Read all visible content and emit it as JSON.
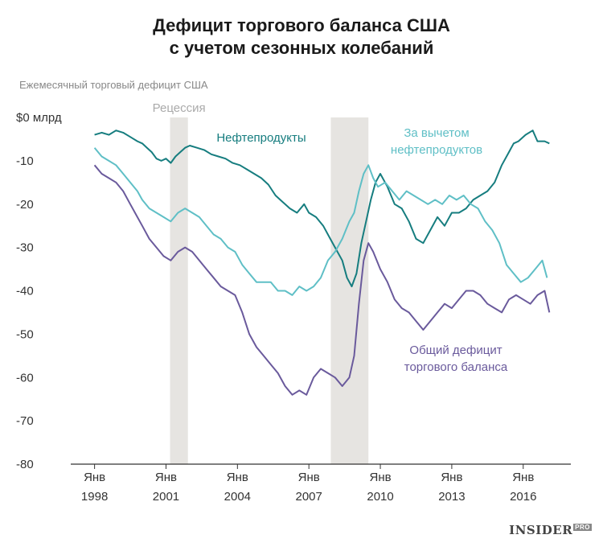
{
  "title_line1": "Дефицит торгового баланса США",
  "title_line2": "с учетом сезонных колебаний",
  "subtitle": "Ежемесячный торговый дефицит США",
  "logo": {
    "text": "INSIDER",
    "sup": "PRO"
  },
  "chart_data": {
    "type": "line",
    "title": "Дефицит торгового баланса США с учетом сезонных колебаний",
    "ylabel": "Ежемесячный торговый дефицит США",
    "x_ticks": [
      {
        "year": 1998,
        "label1": "Янв",
        "label2": "1998"
      },
      {
        "year": 2001,
        "label1": "Янв",
        "label2": "2001"
      },
      {
        "year": 2004,
        "label1": "Янв",
        "label2": "2004"
      },
      {
        "year": 2007,
        "label1": "Янв",
        "label2": "2007"
      },
      {
        "year": 2010,
        "label1": "Янв",
        "label2": "2010"
      },
      {
        "year": 2013,
        "label1": "Янв",
        "label2": "2013"
      },
      {
        "year": 2016,
        "label1": "Янв",
        "label2": "2016"
      }
    ],
    "y_ticks": [
      {
        "v": 0,
        "label": "$0 млрд"
      },
      {
        "v": -10,
        "label": "-10"
      },
      {
        "v": -20,
        "label": "-20"
      },
      {
        "v": -30,
        "label": "-30"
      },
      {
        "v": -40,
        "label": "-40"
      },
      {
        "v": -50,
        "label": "-50"
      },
      {
        "v": -60,
        "label": "-60"
      },
      {
        "v": -70,
        "label": "-70"
      },
      {
        "v": -80,
        "label": "-80"
      }
    ],
    "xlim": [
      1997.0,
      2018.0
    ],
    "ylim": [
      -80,
      0
    ],
    "recessions": [
      {
        "label": "Рецессия",
        "start": 2001.17,
        "end": 2001.92
      },
      {
        "label": "",
        "start": 2007.92,
        "end": 2009.5
      }
    ],
    "series": [
      {
        "name": "Нефтепродукты",
        "color": "#167d7f",
        "points": [
          [
            1998.0,
            -4
          ],
          [
            1998.3,
            -3.5
          ],
          [
            1998.6,
            -4
          ],
          [
            1998.9,
            -3
          ],
          [
            1999.2,
            -3.5
          ],
          [
            1999.5,
            -4.5
          ],
          [
            1999.8,
            -5.5
          ],
          [
            2000.0,
            -6
          ],
          [
            2000.2,
            -7
          ],
          [
            2000.4,
            -8
          ],
          [
            2000.6,
            -9.5
          ],
          [
            2000.8,
            -10
          ],
          [
            2001.0,
            -9.5
          ],
          [
            2001.2,
            -10.5
          ],
          [
            2001.4,
            -9
          ],
          [
            2001.6,
            -8
          ],
          [
            2001.8,
            -7
          ],
          [
            2002.0,
            -6.5
          ],
          [
            2002.3,
            -7
          ],
          [
            2002.6,
            -7.5
          ],
          [
            2002.9,
            -8.5
          ],
          [
            2003.2,
            -9
          ],
          [
            2003.5,
            -9.5
          ],
          [
            2003.8,
            -10.5
          ],
          [
            2004.1,
            -11
          ],
          [
            2004.4,
            -12
          ],
          [
            2004.7,
            -13
          ],
          [
            2005.0,
            -14
          ],
          [
            2005.3,
            -15.5
          ],
          [
            2005.6,
            -18
          ],
          [
            2005.9,
            -19.5
          ],
          [
            2006.2,
            -21
          ],
          [
            2006.5,
            -22
          ],
          [
            2006.8,
            -20
          ],
          [
            2007.0,
            -22
          ],
          [
            2007.3,
            -23
          ],
          [
            2007.6,
            -25
          ],
          [
            2007.9,
            -28
          ],
          [
            2008.2,
            -31
          ],
          [
            2008.4,
            -33
          ],
          [
            2008.6,
            -37
          ],
          [
            2008.8,
            -39
          ],
          [
            2009.0,
            -36
          ],
          [
            2009.2,
            -29
          ],
          [
            2009.4,
            -24
          ],
          [
            2009.6,
            -19
          ],
          [
            2009.8,
            -15
          ],
          [
            2010.0,
            -13
          ],
          [
            2010.3,
            -16
          ],
          [
            2010.6,
            -20
          ],
          [
            2010.9,
            -21
          ],
          [
            2011.2,
            -24
          ],
          [
            2011.5,
            -28
          ],
          [
            2011.8,
            -29
          ],
          [
            2012.1,
            -26
          ],
          [
            2012.4,
            -23
          ],
          [
            2012.7,
            -25
          ],
          [
            2013.0,
            -22
          ],
          [
            2013.3,
            -22
          ],
          [
            2013.6,
            -21
          ],
          [
            2013.9,
            -19
          ],
          [
            2014.2,
            -18
          ],
          [
            2014.5,
            -17
          ],
          [
            2014.8,
            -15
          ],
          [
            2015.1,
            -11
          ],
          [
            2015.4,
            -8
          ],
          [
            2015.6,
            -6
          ],
          [
            2015.8,
            -5.5
          ],
          [
            2016.1,
            -4
          ],
          [
            2016.4,
            -3
          ],
          [
            2016.6,
            -5.5
          ],
          [
            2016.9,
            -5.5
          ],
          [
            2017.1,
            -6
          ]
        ]
      },
      {
        "name": "За вычетом нефтепродуктов",
        "color": "#5fbfc6",
        "points": [
          [
            1998.0,
            -7
          ],
          [
            1998.3,
            -9
          ],
          [
            1998.6,
            -10
          ],
          [
            1998.9,
            -11
          ],
          [
            1999.2,
            -13
          ],
          [
            1999.5,
            -15
          ],
          [
            1999.8,
            -17
          ],
          [
            2000.0,
            -19
          ],
          [
            2000.3,
            -21
          ],
          [
            2000.6,
            -22
          ],
          [
            2000.9,
            -23
          ],
          [
            2001.2,
            -24
          ],
          [
            2001.5,
            -22
          ],
          [
            2001.8,
            -21
          ],
          [
            2002.1,
            -22
          ],
          [
            2002.4,
            -23
          ],
          [
            2002.7,
            -25
          ],
          [
            2003.0,
            -27
          ],
          [
            2003.3,
            -28
          ],
          [
            2003.6,
            -30
          ],
          [
            2003.9,
            -31
          ],
          [
            2004.2,
            -34
          ],
          [
            2004.5,
            -36
          ],
          [
            2004.8,
            -38
          ],
          [
            2005.1,
            -38
          ],
          [
            2005.4,
            -38
          ],
          [
            2005.7,
            -40
          ],
          [
            2006.0,
            -40
          ],
          [
            2006.3,
            -41
          ],
          [
            2006.6,
            -39
          ],
          [
            2006.9,
            -40
          ],
          [
            2007.2,
            -39
          ],
          [
            2007.5,
            -37
          ],
          [
            2007.8,
            -33
          ],
          [
            2008.1,
            -31
          ],
          [
            2008.4,
            -28
          ],
          [
            2008.7,
            -24
          ],
          [
            2008.9,
            -22
          ],
          [
            2009.1,
            -17
          ],
          [
            2009.3,
            -13
          ],
          [
            2009.5,
            -11
          ],
          [
            2009.7,
            -14
          ],
          [
            2009.9,
            -16
          ],
          [
            2010.2,
            -15
          ],
          [
            2010.5,
            -17
          ],
          [
            2010.8,
            -19
          ],
          [
            2011.1,
            -17
          ],
          [
            2011.4,
            -18
          ],
          [
            2011.7,
            -19
          ],
          [
            2012.0,
            -20
          ],
          [
            2012.3,
            -19
          ],
          [
            2012.6,
            -20
          ],
          [
            2012.9,
            -18
          ],
          [
            2013.2,
            -19
          ],
          [
            2013.5,
            -18
          ],
          [
            2013.8,
            -20
          ],
          [
            2014.1,
            -21
          ],
          [
            2014.4,
            -24
          ],
          [
            2014.7,
            -26
          ],
          [
            2015.0,
            -29
          ],
          [
            2015.3,
            -34
          ],
          [
            2015.6,
            -36
          ],
          [
            2015.9,
            -38
          ],
          [
            2016.2,
            -37
          ],
          [
            2016.5,
            -35
          ],
          [
            2016.8,
            -33
          ],
          [
            2017.0,
            -37
          ]
        ]
      },
      {
        "name": "Общий дефицит торгового баланса",
        "color": "#6a5a9c",
        "points": [
          [
            1998.0,
            -11
          ],
          [
            1998.3,
            -13
          ],
          [
            1998.6,
            -14
          ],
          [
            1998.9,
            -15
          ],
          [
            1999.2,
            -17
          ],
          [
            1999.5,
            -20
          ],
          [
            1999.8,
            -23
          ],
          [
            2000.0,
            -25
          ],
          [
            2000.3,
            -28
          ],
          [
            2000.6,
            -30
          ],
          [
            2000.9,
            -32
          ],
          [
            2001.2,
            -33
          ],
          [
            2001.5,
            -31
          ],
          [
            2001.8,
            -30
          ],
          [
            2002.1,
            -31
          ],
          [
            2002.4,
            -33
          ],
          [
            2002.7,
            -35
          ],
          [
            2003.0,
            -37
          ],
          [
            2003.3,
            -39
          ],
          [
            2003.6,
            -40
          ],
          [
            2003.9,
            -41
          ],
          [
            2004.2,
            -45
          ],
          [
            2004.5,
            -50
          ],
          [
            2004.8,
            -53
          ],
          [
            2005.1,
            -55
          ],
          [
            2005.4,
            -57
          ],
          [
            2005.7,
            -59
          ],
          [
            2006.0,
            -62
          ],
          [
            2006.3,
            -64
          ],
          [
            2006.6,
            -63
          ],
          [
            2006.9,
            -64
          ],
          [
            2007.2,
            -60
          ],
          [
            2007.5,
            -58
          ],
          [
            2007.8,
            -59
          ],
          [
            2008.1,
            -60
          ],
          [
            2008.4,
            -62
          ],
          [
            2008.7,
            -60
          ],
          [
            2008.9,
            -55
          ],
          [
            2009.1,
            -43
          ],
          [
            2009.3,
            -33
          ],
          [
            2009.5,
            -29
          ],
          [
            2009.7,
            -31
          ],
          [
            2010.0,
            -35
          ],
          [
            2010.3,
            -38
          ],
          [
            2010.6,
            -42
          ],
          [
            2010.9,
            -44
          ],
          [
            2011.2,
            -45
          ],
          [
            2011.5,
            -47
          ],
          [
            2011.8,
            -49
          ],
          [
            2012.1,
            -47
          ],
          [
            2012.4,
            -45
          ],
          [
            2012.7,
            -43
          ],
          [
            2013.0,
            -44
          ],
          [
            2013.3,
            -42
          ],
          [
            2013.6,
            -40
          ],
          [
            2013.9,
            -40
          ],
          [
            2014.2,
            -41
          ],
          [
            2014.5,
            -43
          ],
          [
            2014.8,
            -44
          ],
          [
            2015.1,
            -45
          ],
          [
            2015.4,
            -42
          ],
          [
            2015.7,
            -41
          ],
          [
            2016.0,
            -42
          ],
          [
            2016.3,
            -43
          ],
          [
            2016.6,
            -41
          ],
          [
            2016.9,
            -40
          ],
          [
            2017.1,
            -45
          ]
        ]
      }
    ],
    "annotations": [
      {
        "text": [
          "Нефтепродукты"
        ],
        "color": "#167d7f"
      },
      {
        "text": [
          "За вычетом",
          "нефтепродуктов"
        ],
        "color": "#5fbfc6"
      },
      {
        "text": [
          "Общий дефицит",
          "торгового баланса"
        ],
        "color": "#6a5a9c"
      }
    ]
  }
}
